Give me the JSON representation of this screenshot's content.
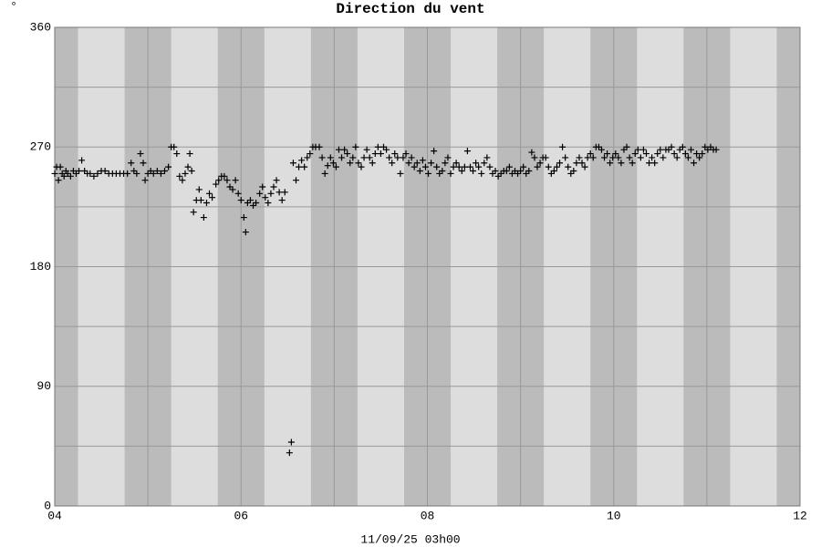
{
  "chart_data": {
    "type": "scatter",
    "title": "Direction du vent",
    "unit_label": "°",
    "xlabel": "11/09/25 03h00",
    "marker": "+",
    "color": "#000000",
    "xlim": [
      4,
      12
    ],
    "xticks": [
      {
        "value": 4,
        "label": "04"
      },
      {
        "value": 6,
        "label": "06"
      },
      {
        "value": 8,
        "label": "08"
      },
      {
        "value": 10,
        "label": "10"
      },
      {
        "value": 12,
        "label": "12"
      }
    ],
    "xminor": [
      5,
      7,
      9,
      11
    ],
    "ylim": [
      0,
      360
    ],
    "yticks": [
      0,
      90,
      180,
      270,
      360
    ],
    "yminor": [
      45,
      135,
      225,
      315
    ],
    "grid": true,
    "x": [
      4.0,
      4.02,
      4.04,
      4.06,
      4.08,
      4.1,
      4.12,
      4.14,
      4.17,
      4.2,
      4.23,
      4.26,
      4.29,
      4.32,
      4.35,
      4.38,
      4.42,
      4.46,
      4.5,
      4.54,
      4.58,
      4.62,
      4.66,
      4.7,
      4.74,
      4.78,
      4.82,
      4.85,
      4.88,
      4.92,
      4.95,
      4.97,
      5.0,
      5.03,
      5.06,
      5.1,
      5.14,
      5.18,
      5.22,
      5.25,
      5.28,
      5.31,
      5.34,
      5.37,
      5.4,
      5.43,
      5.45,
      5.47,
      5.49,
      5.52,
      5.55,
      5.57,
      5.6,
      5.63,
      5.66,
      5.69,
      5.73,
      5.76,
      5.79,
      5.82,
      5.85,
      5.88,
      5.91,
      5.94,
      5.97,
      6.0,
      6.03,
      6.05,
      6.07,
      6.1,
      6.13,
      6.16,
      6.2,
      6.23,
      6.26,
      6.29,
      6.32,
      6.35,
      6.38,
      6.41,
      6.44,
      6.47,
      6.52,
      6.54,
      6.56,
      6.59,
      6.62,
      6.65,
      6.68,
      6.71,
      6.74,
      6.77,
      6.8,
      6.84,
      6.87,
      6.9,
      6.93,
      6.96,
      6.99,
      7.02,
      7.05,
      7.08,
      7.11,
      7.14,
      7.17,
      7.2,
      7.23,
      7.26,
      7.29,
      7.32,
      7.35,
      7.38,
      7.41,
      7.44,
      7.47,
      7.5,
      7.53,
      7.56,
      7.59,
      7.62,
      7.65,
      7.68,
      7.71,
      7.74,
      7.77,
      7.8,
      7.83,
      7.86,
      7.89,
      7.92,
      7.95,
      7.98,
      8.01,
      8.04,
      8.07,
      8.1,
      8.13,
      8.16,
      8.19,
      8.22,
      8.25,
      8.28,
      8.31,
      8.34,
      8.37,
      8.4,
      8.43,
      8.46,
      8.49,
      8.52,
      8.55,
      8.58,
      8.61,
      8.64,
      8.67,
      8.7,
      8.73,
      8.76,
      8.79,
      8.82,
      8.85,
      8.88,
      8.91,
      8.94,
      8.97,
      9.0,
      9.03,
      9.06,
      9.09,
      9.12,
      9.15,
      9.18,
      9.21,
      9.24,
      9.27,
      9.3,
      9.33,
      9.36,
      9.39,
      9.42,
      9.45,
      9.48,
      9.51,
      9.54,
      9.57,
      9.6,
      9.63,
      9.66,
      9.69,
      9.72,
      9.75,
      9.78,
      9.81,
      9.84,
      9.87,
      9.9,
      9.93,
      9.96,
      9.99,
      10.02,
      10.05,
      10.08,
      10.11,
      10.14,
      10.17,
      10.2,
      10.23,
      10.26,
      10.29,
      10.32,
      10.35,
      10.38,
      10.41,
      10.44,
      10.47,
      10.5,
      10.53,
      10.56,
      10.59,
      10.62,
      10.65,
      10.68,
      10.71,
      10.74,
      10.77,
      10.8,
      10.83,
      10.86,
      10.89,
      10.92,
      10.95,
      10.98,
      11.01,
      11.04,
      11.07,
      11.1
    ],
    "values": [
      250,
      255,
      245,
      255,
      250,
      248,
      252,
      250,
      248,
      252,
      250,
      252,
      260,
      252,
      250,
      250,
      248,
      250,
      252,
      252,
      250,
      250,
      250,
      250,
      250,
      250,
      258,
      252,
      250,
      265,
      258,
      245,
      250,
      252,
      250,
      252,
      250,
      252,
      255,
      270,
      270,
      265,
      248,
      245,
      250,
      255,
      265,
      252,
      221,
      230,
      238,
      230,
      217,
      228,
      235,
      232,
      242,
      245,
      248,
      248,
      245,
      240,
      238,
      245,
      235,
      230,
      217,
      206,
      228,
      230,
      226,
      228,
      235,
      240,
      232,
      228,
      235,
      240,
      245,
      236,
      230,
      236,
      40,
      48,
      258,
      245,
      255,
      260,
      255,
      262,
      265,
      270,
      270,
      270,
      262,
      250,
      256,
      262,
      258,
      255,
      268,
      262,
      268,
      265,
      258,
      262,
      270,
      258,
      255,
      262,
      268,
      262,
      258,
      265,
      270,
      265,
      270,
      268,
      262,
      258,
      265,
      262,
      250,
      262,
      265,
      258,
      262,
      255,
      258,
      252,
      260,
      255,
      250,
      258,
      267,
      255,
      250,
      252,
      258,
      262,
      250,
      255,
      258,
      255,
      252,
      255,
      267,
      255,
      252,
      258,
      255,
      250,
      258,
      262,
      255,
      250,
      252,
      248,
      250,
      252,
      252,
      255,
      250,
      252,
      250,
      252,
      255,
      250,
      252,
      266,
      262,
      255,
      258,
      262,
      262,
      255,
      250,
      252,
      255,
      258,
      270,
      262,
      255,
      250,
      252,
      258,
      262,
      258,
      255,
      262,
      265,
      262,
      270,
      270,
      268,
      262,
      265,
      258,
      262,
      265,
      262,
      258,
      268,
      270,
      262,
      258,
      265,
      268,
      262,
      268,
      265,
      258,
      262,
      258,
      265,
      268,
      262,
      268,
      268,
      270,
      265,
      262,
      268,
      270,
      265,
      262,
      268,
      258,
      265,
      262,
      265,
      270,
      268,
      270,
      268,
      268
    ]
  }
}
